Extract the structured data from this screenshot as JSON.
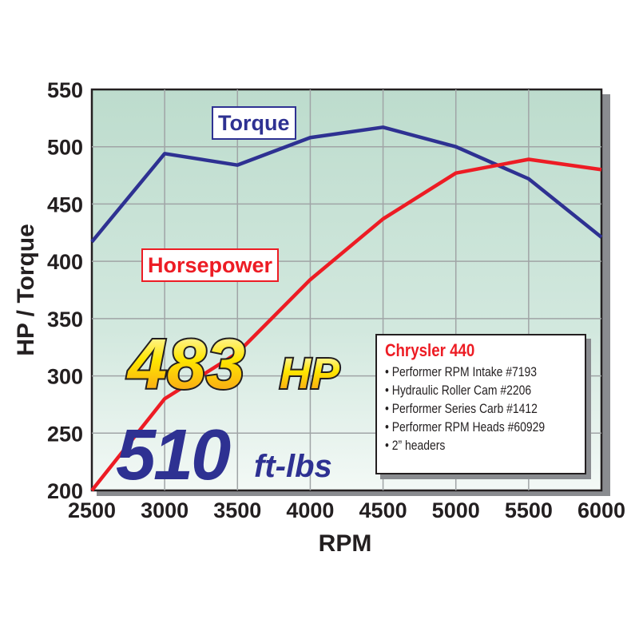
{
  "chart_data": {
    "type": "line",
    "xlabel": "RPM",
    "ylabel": "HP / Torque",
    "xlim": [
      2500,
      6000
    ],
    "ylim": [
      200,
      550
    ],
    "grid": true,
    "x": [
      2500,
      3000,
      3500,
      4000,
      4500,
      5000,
      5500,
      6000
    ],
    "x_ticks": [
      "2500",
      "3000",
      "3500",
      "4000",
      "4500",
      "5000",
      "5500",
      "6000"
    ],
    "y_ticks": [
      "200",
      "250",
      "300",
      "350",
      "400",
      "450",
      "500",
      "550"
    ],
    "series": [
      {
        "name": "Torque",
        "color": "#2e3192",
        "values": [
          417,
          494,
          484,
          508,
          517,
          500,
          472,
          421
        ]
      },
      {
        "name": "Horsepower",
        "color": "#ed1c24",
        "values": [
          200,
          280,
          320,
          384,
          437,
          477,
          489,
          480
        ]
      }
    ]
  },
  "callouts": {
    "hp_value": "483",
    "hp_unit": "HP",
    "torque_value": "510",
    "torque_unit": "ft-lbs"
  },
  "info_box": {
    "title": "Chrysler 440",
    "items": [
      "• Performer RPM Intake #7193",
      "• Hydraulic Roller Cam #2206",
      "• Performer Series Carb #1412",
      "• Performer RPM Heads #60929",
      "• 2” headers"
    ]
  }
}
